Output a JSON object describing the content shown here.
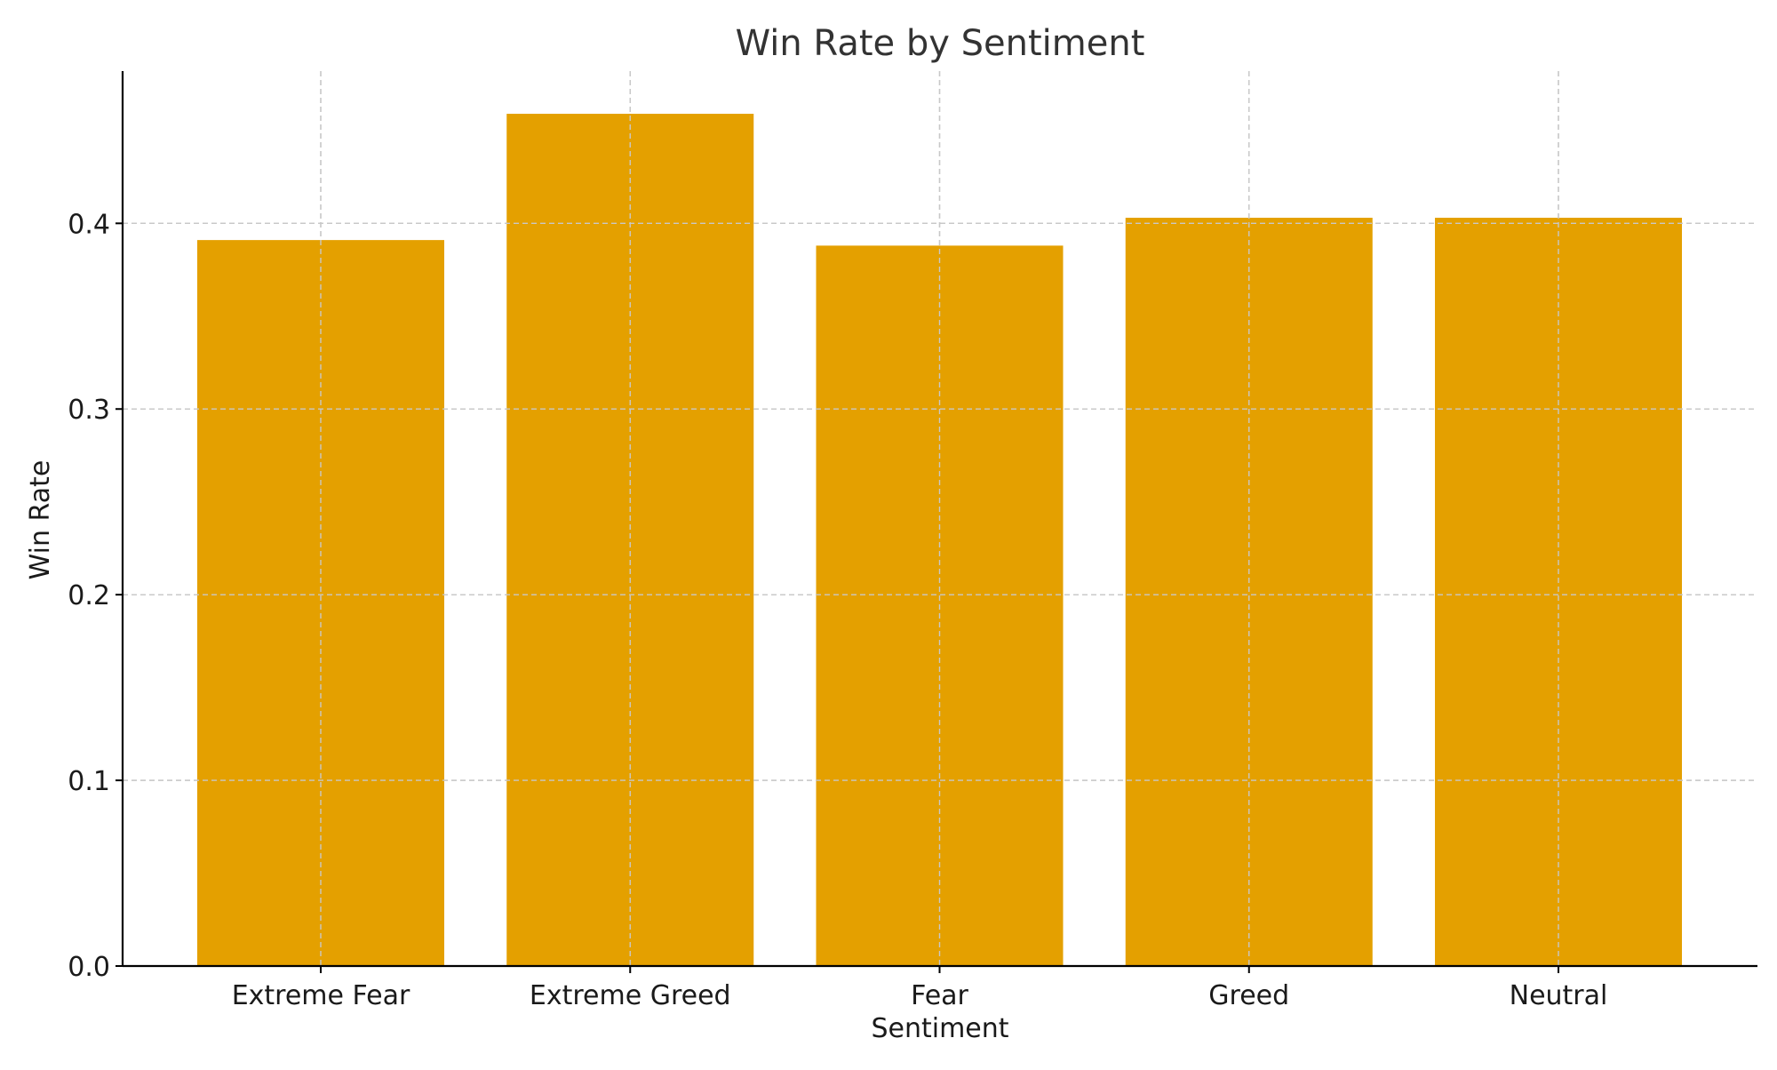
{
  "chart_data": {
    "type": "bar",
    "title": "Win Rate by Sentiment",
    "xlabel": "Sentiment",
    "ylabel": "Win Rate",
    "categories": [
      "Extreme Fear",
      "Extreme Greed",
      "Fear",
      "Greed",
      "Neutral"
    ],
    "values": [
      0.391,
      0.459,
      0.388,
      0.403,
      0.403
    ],
    "ylim": [
      0,
      0.482
    ],
    "yticks": [
      "0.0",
      "0.1",
      "0.2",
      "0.3",
      "0.4"
    ],
    "grid": true,
    "legend": "none",
    "bar_color": "#E4A000"
  }
}
